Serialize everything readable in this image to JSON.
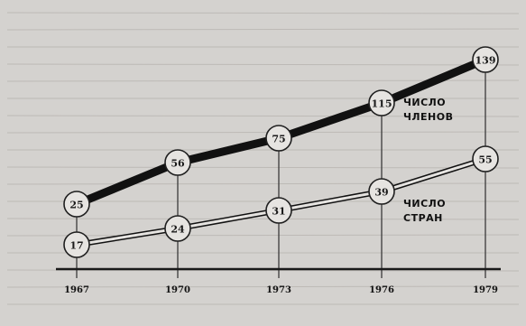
{
  "chart_data": {
    "type": "line",
    "x": [
      "1967",
      "1970",
      "1973",
      "1976",
      "1979"
    ],
    "series": [
      {
        "name": "ЧИСЛО ЧЛЕНОВ",
        "label_lines": [
          "ЧИСЛО",
          "ЧЛЕНОВ"
        ],
        "values": [
          25,
          56,
          75,
          115,
          139
        ],
        "style": "thick",
        "color": "#111111"
      },
      {
        "name": "ЧИСЛО СТРАН",
        "label_lines": [
          "ЧИСЛО",
          "СТРАН"
        ],
        "values": [
          17,
          24,
          31,
          39,
          55
        ],
        "style": "double",
        "color": "#111111"
      }
    ],
    "title": "",
    "xlabel": "",
    "ylabel": "",
    "grid": false,
    "legend": "inline-right"
  }
}
